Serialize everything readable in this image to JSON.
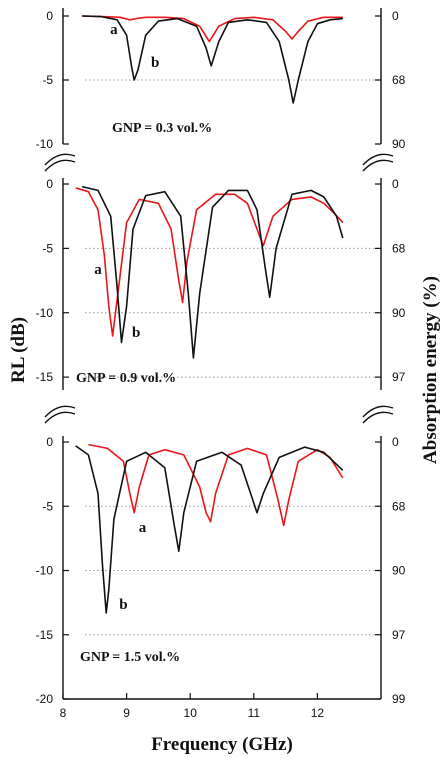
{
  "chart_data": {
    "type": "line",
    "xlabel": "Frequency (GHz)",
    "ylabel": "RL (dB)",
    "y2label": "Absorption energy (%)",
    "xlim": [
      8,
      13
    ],
    "x_ticks": [
      8,
      9,
      10,
      11,
      12
    ],
    "line_colors": {
      "a": "#e8161b",
      "b": "#111111"
    },
    "panels": [
      {
        "annotation": "GNP = 0.3 vol.%",
        "ylim": [
          -10,
          0
        ],
        "y_ticks": [
          0,
          -5,
          -10
        ],
        "y2_ticks": [
          {
            "rl": 0,
            "label": "0"
          },
          {
            "rl": -5,
            "label": "68"
          },
          {
            "rl": -10,
            "label": "90"
          }
        ],
        "series": [
          {
            "name": "a",
            "x": [
              8.3,
              8.6,
              8.9,
              9.05,
              9.15,
              9.3,
              9.6,
              9.9,
              10.15,
              10.3,
              10.45,
              10.7,
              11.0,
              11.3,
              11.5,
              11.6,
              11.7,
              11.85,
              12.1,
              12.4
            ],
            "y": [
              0,
              -0.05,
              -0.1,
              -0.3,
              -0.2,
              -0.1,
              -0.1,
              -0.2,
              -0.8,
              -2.0,
              -0.8,
              -0.2,
              -0.1,
              -0.3,
              -1.2,
              -1.8,
              -1.2,
              -0.4,
              -0.1,
              -0.1
            ]
          },
          {
            "name": "b",
            "x": [
              8.3,
              8.6,
              8.85,
              9.0,
              9.08,
              9.12,
              9.18,
              9.3,
              9.5,
              9.8,
              10.1,
              10.25,
              10.33,
              10.45,
              10.6,
              10.9,
              11.2,
              11.4,
              11.55,
              11.62,
              11.7,
              11.85,
              12.0,
              12.2,
              12.4
            ],
            "y": [
              0,
              -0.05,
              -0.3,
              -1.5,
              -4.0,
              -5.0,
              -4.2,
              -1.5,
              -0.4,
              -0.2,
              -0.8,
              -2.5,
              -3.9,
              -2.0,
              -0.5,
              -0.3,
              -0.5,
              -2.0,
              -5.0,
              -6.8,
              -5.0,
              -2.0,
              -0.6,
              -0.3,
              -0.2
            ]
          }
        ],
        "curve_labels": [
          {
            "text": "a",
            "x": 8.8,
            "y": -1.4
          },
          {
            "text": "b",
            "x": 9.45,
            "y": -4.0
          }
        ]
      },
      {
        "annotation": "GNP = 0.9 vol.%",
        "ylim": [
          -16,
          0
        ],
        "y_ticks": [
          0,
          -5,
          -10,
          -15
        ],
        "y2_ticks": [
          {
            "rl": 0,
            "label": "0"
          },
          {
            "rl": -5,
            "label": "68"
          },
          {
            "rl": -10,
            "label": "90"
          },
          {
            "rl": -15,
            "label": "97"
          }
        ],
        "series": [
          {
            "name": "a",
            "x": [
              8.2,
              8.4,
              8.55,
              8.65,
              8.72,
              8.78,
              8.85,
              9.0,
              9.2,
              9.5,
              9.7,
              9.82,
              9.88,
              9.95,
              10.1,
              10.4,
              10.7,
              10.9,
              11.05,
              11.15,
              11.3,
              11.6,
              11.9,
              12.1,
              12.25,
              12.4
            ],
            "y": [
              -0.3,
              -0.6,
              -2.0,
              -5.5,
              -9.5,
              -11.8,
              -9.0,
              -3.0,
              -1.2,
              -1.5,
              -3.5,
              -7.5,
              -9.2,
              -6.0,
              -2.0,
              -0.8,
              -0.8,
              -1.5,
              -3.5,
              -4.8,
              -2.5,
              -1.2,
              -1.0,
              -1.5,
              -2.2,
              -3.0
            ]
          },
          {
            "name": "b",
            "x": [
              8.3,
              8.55,
              8.75,
              8.85,
              8.92,
              9.0,
              9.1,
              9.3,
              9.6,
              9.85,
              9.97,
              10.05,
              10.15,
              10.35,
              10.6,
              10.9,
              11.05,
              11.18,
              11.25,
              11.35,
              11.6,
              11.9,
              12.1,
              12.3,
              12.4
            ],
            "y": [
              -0.2,
              -0.5,
              -2.5,
              -8.0,
              -12.3,
              -9.5,
              -3.5,
              -0.9,
              -0.6,
              -2.5,
              -8.5,
              -13.5,
              -8.5,
              -1.8,
              -0.5,
              -0.5,
              -2.0,
              -6.5,
              -8.8,
              -5.0,
              -0.8,
              -0.5,
              -1.0,
              -2.5,
              -4.2
            ]
          }
        ],
        "curve_labels": [
          {
            "text": "a",
            "x": 8.55,
            "y": -7.0
          },
          {
            "text": "b",
            "x": 9.15,
            "y": -11.9
          }
        ]
      },
      {
        "annotation": "GNP = 1.5 vol.%",
        "ylim": [
          -20,
          0
        ],
        "y_ticks": [
          0,
          -5,
          -10,
          -15,
          -20
        ],
        "y2_ticks": [
          {
            "rl": 0,
            "label": "0"
          },
          {
            "rl": -5,
            "label": "68"
          },
          {
            "rl": -10,
            "label": "90"
          },
          {
            "rl": -15,
            "label": "97"
          },
          {
            "rl": -20,
            "label": "99"
          }
        ],
        "series": [
          {
            "name": "a",
            "x": [
              8.4,
              8.7,
              8.95,
              9.05,
              9.12,
              9.2,
              9.35,
              9.6,
              9.9,
              10.15,
              10.25,
              10.32,
              10.4,
              10.6,
              10.9,
              11.2,
              11.38,
              11.47,
              11.55,
              11.7,
              12.0,
              12.2,
              12.4
            ],
            "y": [
              -0.2,
              -0.5,
              -1.5,
              -4.0,
              -5.5,
              -3.5,
              -1.0,
              -0.6,
              -1.0,
              -3.5,
              -5.5,
              -6.2,
              -4.0,
              -1.0,
              -0.5,
              -1.0,
              -4.5,
              -6.5,
              -4.5,
              -1.5,
              -0.6,
              -1.2,
              -2.8
            ]
          },
          {
            "name": "b",
            "x": [
              8.2,
              8.4,
              8.55,
              8.62,
              8.68,
              8.72,
              8.8,
              9.0,
              9.3,
              9.6,
              9.75,
              9.82,
              9.9,
              10.1,
              10.5,
              10.8,
              10.95,
              11.05,
              11.15,
              11.4,
              11.8,
              12.1,
              12.4
            ],
            "y": [
              -0.3,
              -1.0,
              -4.0,
              -9.5,
              -13.3,
              -11.5,
              -6.0,
              -1.5,
              -0.8,
              -2.0,
              -6.5,
              -8.5,
              -5.5,
              -1.5,
              -0.8,
              -1.8,
              -4.0,
              -5.5,
              -4.0,
              -1.2,
              -0.4,
              -0.8,
              -2.2
            ]
          }
        ],
        "curve_labels": [
          {
            "text": "a",
            "x": 9.25,
            "y": -7.0
          },
          {
            "text": "b",
            "x": 8.95,
            "y": -13.0
          }
        ]
      }
    ]
  }
}
